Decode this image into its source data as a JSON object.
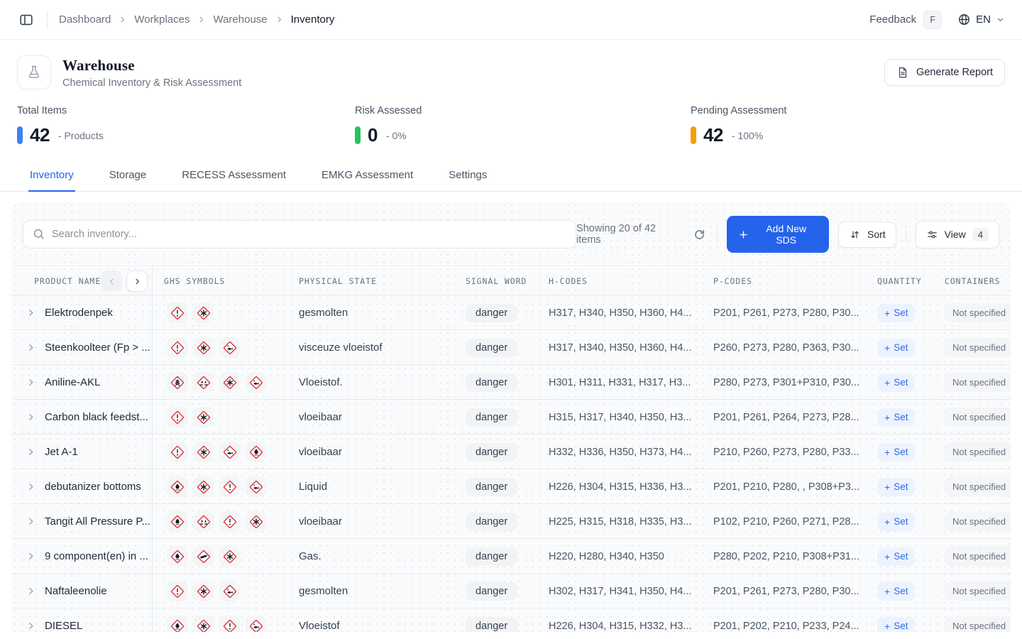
{
  "topbar": {
    "breadcrumb": [
      "Dashboard",
      "Workplaces",
      "Warehouse",
      "Inventory"
    ],
    "feedback_label": "Feedback",
    "feedback_key": "F",
    "language": "EN"
  },
  "header": {
    "title": "Warehouse",
    "subtitle": "Chemical Inventory & Risk Assessment",
    "generate_report_label": "Generate Report"
  },
  "stats": [
    {
      "label": "Total Items",
      "value": "42",
      "suffix": "- Products",
      "color": "#3b82f6"
    },
    {
      "label": "Risk Assessed",
      "value": "0",
      "suffix": "- 0%",
      "color": "#22c55e"
    },
    {
      "label": "Pending Assessment",
      "value": "42",
      "suffix": "- 100%",
      "color": "#f59e0b"
    }
  ],
  "tabs": [
    "Inventory",
    "Storage",
    "RECESS Assessment",
    "EMKG Assessment",
    "Settings"
  ],
  "active_tab": "Inventory",
  "toolbar": {
    "search_placeholder": "Search inventory...",
    "showing": "Showing 20 of 42 items",
    "add_button_label": "Add New SDS",
    "sort_button_label": "Sort",
    "view_button_label": "View",
    "view_count": "4"
  },
  "table": {
    "columns": [
      "PRODUCT NAME",
      "GHS SYMBOLS",
      "PHYSICAL STATE",
      "SIGNAL WORD",
      "H-CODES",
      "P-CODES",
      "QUANTITY",
      "CONTAINERS"
    ],
    "rows": [
      {
        "name": "Elektrodenpek",
        "ghs": [
          "exclamation",
          "health-hazard"
        ],
        "state": "gesmolten",
        "signal": "danger",
        "h_codes": "H317, H340, H350, H360, H4...",
        "p_codes": "P201, P261, P273, P280, P30...",
        "quantity_action": "Set",
        "containers": "Not specified"
      },
      {
        "name": "Steenkoolteer (Fp > ...",
        "ghs": [
          "exclamation",
          "health-hazard",
          "environment"
        ],
        "state": "visceuze vloeistof",
        "signal": "danger",
        "h_codes": "H317, H340, H350, H360, H4...",
        "p_codes": "P260, P273, P280, P363, P30...",
        "quantity_action": "Set",
        "containers": "Not specified"
      },
      {
        "name": "Aniline-AKL",
        "ghs": [
          "skull",
          "corrosion",
          "health-hazard",
          "environment"
        ],
        "state": "Vloeistof.",
        "signal": "danger",
        "h_codes": "H301, H311, H331, H317, H3...",
        "p_codes": "P280, P273, P301+P310, P30...",
        "quantity_action": "Set",
        "containers": "Not specified"
      },
      {
        "name": "Carbon black feedst...",
        "ghs": [
          "exclamation",
          "health-hazard"
        ],
        "state": "vloeibaar",
        "signal": "danger",
        "h_codes": "H315, H317, H340, H350, H3...",
        "p_codes": "P201, P261, P264, P273, P28...",
        "quantity_action": "Set",
        "containers": "Not specified"
      },
      {
        "name": "Jet A-1",
        "ghs": [
          "exclamation",
          "health-hazard",
          "environment",
          "flame"
        ],
        "state": "vloeibaar",
        "signal": "danger",
        "h_codes": "H332, H336, H350, H373, H4...",
        "p_codes": "P210, P260, P273, P280, P33...",
        "quantity_action": "Set",
        "containers": "Not specified"
      },
      {
        "name": "debutanizer bottoms",
        "ghs": [
          "flame",
          "health-hazard",
          "exclamation",
          "environment"
        ],
        "state": "Liquid",
        "signal": "danger",
        "h_codes": "H226, H304, H315, H336, H3...",
        "p_codes": "P201, P210, P280, , P308+P3...",
        "quantity_action": "Set",
        "containers": "Not specified"
      },
      {
        "name": "Tangit All Pressure P...",
        "ghs": [
          "flame",
          "corrosion",
          "exclamation",
          "health-hazard"
        ],
        "state": "vloeibaar",
        "signal": "danger",
        "h_codes": "H225, H315, H318, H335, H3...",
        "p_codes": "P102, P210, P260, P271, P28...",
        "quantity_action": "Set",
        "containers": "Not specified"
      },
      {
        "name": "9 component(en) in ...",
        "ghs": [
          "flame",
          "gas-cylinder",
          "health-hazard"
        ],
        "state": "Gas.",
        "signal": "danger",
        "h_codes": "H220, H280, H340, H350",
        "p_codes": "P280, P202, P210, P308+P31...",
        "quantity_action": "Set",
        "containers": "Not specified"
      },
      {
        "name": "Naftaleenolie",
        "ghs": [
          "exclamation",
          "health-hazard",
          "environment"
        ],
        "state": "gesmolten",
        "signal": "danger",
        "h_codes": "H302, H317, H341, H350, H4...",
        "p_codes": "P201, P261, P273, P280, P30...",
        "quantity_action": "Set",
        "containers": "Not specified"
      },
      {
        "name": "DIESEL",
        "ghs": [
          "flame",
          "health-hazard",
          "exclamation",
          "environment"
        ],
        "state": "Vloeistof",
        "signal": "danger",
        "h_codes": "H226, H304, H315, H332, H3...",
        "p_codes": "P201, P202, P210, P233, P24...",
        "quantity_action": "Set",
        "containers": "Not specified"
      }
    ]
  },
  "colors": {
    "accent_blue": "#2563eb",
    "ghs_diamond_red": "#d8363c",
    "danger_badge_bg": "#f2f3f5"
  }
}
